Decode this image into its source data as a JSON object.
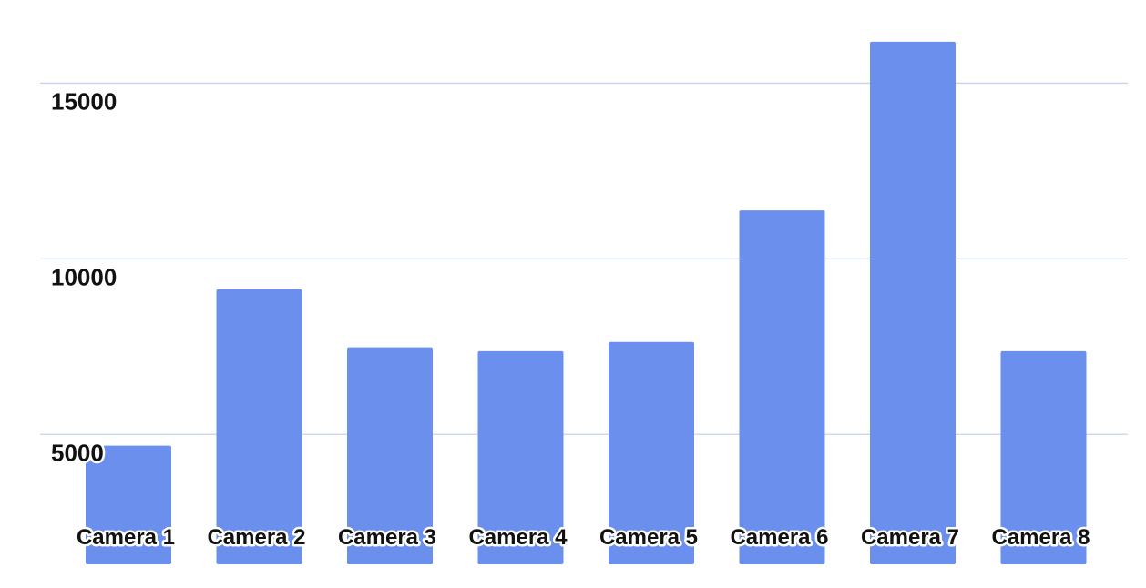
{
  "chart_data": {
    "type": "bar",
    "title": "",
    "xlabel": "",
    "ylabel": "",
    "categories": [
      "Camera 1",
      "Camera 2",
      "Camera 3",
      "Camera 4",
      "Camera 5",
      "Camera 6",
      "Camera 7",
      "Camera 8"
    ],
    "values": [
      4680,
      9130,
      7480,
      7370,
      7630,
      11380,
      16180,
      7370
    ],
    "y_ticks": [
      5000,
      10000,
      15000
    ],
    "y_tick_labels": [
      "5000",
      "10000",
      "15000"
    ],
    "ylim": [
      1300,
      16800
    ],
    "grid": true,
    "legend": "none",
    "bar_color": "#6b8fec",
    "grid_color": "#c8d3ea"
  }
}
